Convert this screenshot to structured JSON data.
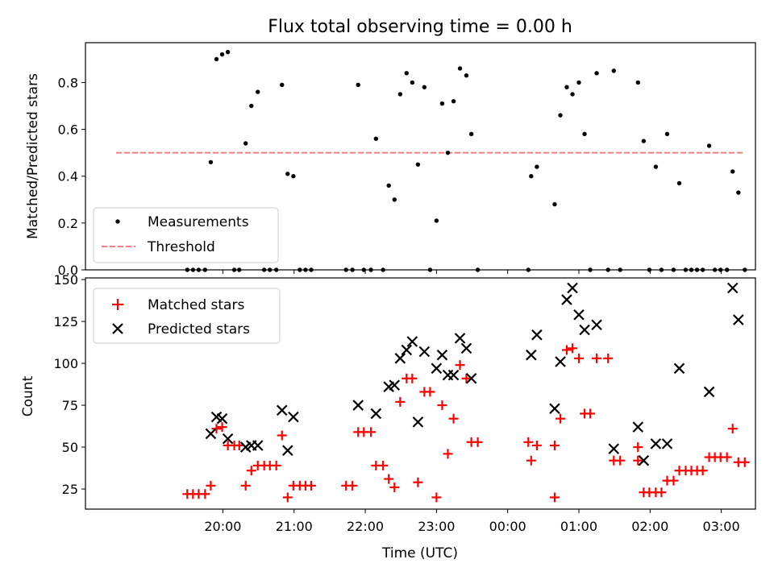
{
  "figure": {
    "title": "Flux total observing time = 0.00 h"
  },
  "chart_data": [
    {
      "type": "scatter",
      "title": "Flux total observing time = 0.00 h",
      "xlabel": "",
      "ylabel": "Matched/Predicted stars",
      "ylim": [
        0,
        0.97
      ],
      "yticks": [
        0.0,
        0.2,
        0.4,
        0.6,
        0.8
      ],
      "ytick_labels": [
        "0.0",
        "0.2",
        "0.4",
        "0.6",
        "0.8"
      ],
      "x_unit": "hours after 19:00 UTC",
      "xlim": [
        -0.93,
        8.48
      ],
      "xticks": [
        1,
        2,
        3,
        4,
        5,
        6,
        7,
        8
      ],
      "grid": false,
      "legend": {
        "placement": "lower-left",
        "entries": [
          "Measurements",
          "Threshold"
        ]
      },
      "colors": {
        "measurements": "#000000",
        "threshold": "#f08080"
      },
      "series": [
        {
          "name": "Measurements",
          "marker": "dot",
          "points": [
            [
              0.5,
              0
            ],
            [
              0.58,
              0
            ],
            [
              0.66,
              0
            ],
            [
              0.75,
              0
            ],
            [
              0.83,
              0.46
            ],
            [
              0.91,
              0.9
            ],
            [
              0.99,
              0.92
            ],
            [
              1.07,
              0.93
            ],
            [
              1.16,
              0
            ],
            [
              1.23,
              0
            ],
            [
              1.32,
              0.54
            ],
            [
              1.4,
              0.7
            ],
            [
              1.49,
              0.76
            ],
            [
              1.58,
              0
            ],
            [
              1.66,
              0
            ],
            [
              1.75,
              0
            ],
            [
              1.83,
              0.79
            ],
            [
              1.91,
              0.41
            ],
            [
              1.99,
              0.4
            ],
            [
              2.08,
              0
            ],
            [
              2.16,
              0
            ],
            [
              2.24,
              0
            ],
            [
              2.73,
              0
            ],
            [
              2.82,
              0
            ],
            [
              2.9,
              0.79
            ],
            [
              2.98,
              0
            ],
            [
              3.08,
              0
            ],
            [
              3.15,
              0.56
            ],
            [
              3.25,
              0
            ],
            [
              3.33,
              0.36
            ],
            [
              3.41,
              0.3
            ],
            [
              3.49,
              0.75
            ],
            [
              3.58,
              0.84
            ],
            [
              3.66,
              0.8
            ],
            [
              3.74,
              0.45
            ],
            [
              3.83,
              0.78
            ],
            [
              3.91,
              0
            ],
            [
              4.0,
              0.21
            ],
            [
              4.08,
              0.71
            ],
            [
              4.16,
              0.5
            ],
            [
              4.24,
              0.72
            ],
            [
              4.33,
              0.86
            ],
            [
              4.42,
              0.83
            ],
            [
              4.49,
              0.58
            ],
            [
              4.58,
              0
            ],
            [
              5.29,
              0
            ],
            [
              5.33,
              0.4
            ],
            [
              5.41,
              0.44
            ],
            [
              5.66,
              0.28
            ],
            [
              5.74,
              0.66
            ],
            [
              5.83,
              0.78
            ],
            [
              5.91,
              0.75
            ],
            [
              6.0,
              0.8
            ],
            [
              6.08,
              0.58
            ],
            [
              6.16,
              0
            ],
            [
              6.25,
              0.84
            ],
            [
              6.41,
              0
            ],
            [
              6.49,
              0.85
            ],
            [
              6.58,
              0
            ],
            [
              6.83,
              0.8
            ],
            [
              6.91,
              0.55
            ],
            [
              6.99,
              0
            ],
            [
              7.08,
              0.44
            ],
            [
              7.16,
              0
            ],
            [
              7.24,
              0.58
            ],
            [
              7.33,
              0
            ],
            [
              7.41,
              0.37
            ],
            [
              7.5,
              0
            ],
            [
              7.58,
              0
            ],
            [
              7.66,
              0
            ],
            [
              7.74,
              0
            ],
            [
              7.83,
              0.53
            ],
            [
              7.91,
              0
            ],
            [
              7.99,
              0
            ],
            [
              8.08,
              0
            ],
            [
              8.16,
              0.42
            ],
            [
              8.24,
              0.33
            ],
            [
              8.33,
              0
            ]
          ]
        },
        {
          "name": "Threshold",
          "marker": "dashed-line",
          "points": [
            [
              -0.5,
              0.5
            ],
            [
              8.33,
              0.5
            ]
          ]
        }
      ]
    },
    {
      "type": "scatter",
      "title": "",
      "xlabel": "Time (UTC)",
      "ylabel": "Count",
      "ylim": [
        13,
        151
      ],
      "yticks": [
        25,
        50,
        75,
        100,
        125,
        150
      ],
      "ytick_labels": [
        "25",
        "50",
        "75",
        "100",
        "125",
        "150"
      ],
      "x_unit": "hours after 19:00 UTC",
      "xlim": [
        -0.93,
        8.48
      ],
      "xticks": [
        1,
        2,
        3,
        4,
        5,
        6,
        7,
        8
      ],
      "xtick_labels": [
        "20:00",
        "21:00",
        "22:00",
        "23:00",
        "00:00",
        "01:00",
        "02:00",
        "03:00"
      ],
      "grid": false,
      "legend": {
        "placement": "upper-left",
        "entries": [
          "Matched stars",
          "Predicted stars"
        ]
      },
      "colors": {
        "matched": "#ff0000",
        "predicted": "#000000"
      },
      "series": [
        {
          "name": "Matched stars",
          "marker": "plus",
          "points": [
            [
              0.5,
              22
            ],
            [
              0.58,
              22
            ],
            [
              0.66,
              22
            ],
            [
              0.75,
              22
            ],
            [
              0.83,
              27
            ],
            [
              0.91,
              61
            ],
            [
              0.99,
              62
            ],
            [
              1.07,
              51
            ],
            [
              1.16,
              51
            ],
            [
              1.23,
              51
            ],
            [
              1.32,
              27
            ],
            [
              1.4,
              36
            ],
            [
              1.49,
              39
            ],
            [
              1.58,
              39
            ],
            [
              1.66,
              39
            ],
            [
              1.75,
              39
            ],
            [
              1.83,
              57
            ],
            [
              1.91,
              20
            ],
            [
              1.99,
              27
            ],
            [
              2.08,
              27
            ],
            [
              2.16,
              27
            ],
            [
              2.24,
              27
            ],
            [
              2.73,
              27
            ],
            [
              2.82,
              27
            ],
            [
              2.9,
              59
            ],
            [
              2.98,
              59
            ],
            [
              3.08,
              59
            ],
            [
              3.15,
              39
            ],
            [
              3.25,
              39
            ],
            [
              3.33,
              31
            ],
            [
              3.41,
              26
            ],
            [
              3.49,
              77
            ],
            [
              3.58,
              91
            ],
            [
              3.66,
              91
            ],
            [
              3.74,
              29
            ],
            [
              3.83,
              83
            ],
            [
              3.91,
              83
            ],
            [
              4.0,
              20
            ],
            [
              4.08,
              75
            ],
            [
              4.16,
              46
            ],
            [
              4.24,
              67
            ],
            [
              4.33,
              99
            ],
            [
              4.42,
              91
            ],
            [
              4.49,
              53
            ],
            [
              4.58,
              53
            ],
            [
              5.29,
              53
            ],
            [
              5.33,
              42
            ],
            [
              5.41,
              51
            ],
            [
              5.66,
              20
            ],
            [
              5.66,
              51
            ],
            [
              5.74,
              67
            ],
            [
              5.83,
              108
            ],
            [
              5.91,
              109
            ],
            [
              6.0,
              103
            ],
            [
              6.08,
              70
            ],
            [
              6.16,
              70
            ],
            [
              6.25,
              103
            ],
            [
              6.41,
              103
            ],
            [
              6.49,
              42
            ],
            [
              6.58,
              42
            ],
            [
              6.83,
              42
            ],
            [
              6.83,
              50
            ],
            [
              6.91,
              23
            ],
            [
              6.99,
              23
            ],
            [
              7.08,
              23
            ],
            [
              7.16,
              23
            ],
            [
              7.24,
              30
            ],
            [
              7.33,
              30
            ],
            [
              7.41,
              36
            ],
            [
              7.5,
              36
            ],
            [
              7.58,
              36
            ],
            [
              7.66,
              36
            ],
            [
              7.74,
              36
            ],
            [
              7.83,
              44
            ],
            [
              7.91,
              44
            ],
            [
              7.99,
              44
            ],
            [
              8.08,
              44
            ],
            [
              8.16,
              61
            ],
            [
              8.24,
              41
            ],
            [
              8.33,
              41
            ]
          ]
        },
        {
          "name": "Predicted stars",
          "marker": "cross",
          "points": [
            [
              0.83,
              58
            ],
            [
              0.91,
              68
            ],
            [
              0.99,
              67
            ],
            [
              1.07,
              55
            ],
            [
              1.32,
              50
            ],
            [
              1.4,
              51
            ],
            [
              1.49,
              51
            ],
            [
              1.83,
              72
            ],
            [
              1.91,
              48
            ],
            [
              1.99,
              68
            ],
            [
              2.9,
              75
            ],
            [
              3.15,
              70
            ],
            [
              3.33,
              86
            ],
            [
              3.41,
              87
            ],
            [
              3.49,
              103
            ],
            [
              3.58,
              108
            ],
            [
              3.66,
              113
            ],
            [
              3.74,
              65
            ],
            [
              3.83,
              107
            ],
            [
              4.0,
              97
            ],
            [
              4.08,
              105
            ],
            [
              4.16,
              93
            ],
            [
              4.24,
              93
            ],
            [
              4.33,
              115
            ],
            [
              4.42,
              109
            ],
            [
              4.49,
              91
            ],
            [
              5.33,
              105
            ],
            [
              5.41,
              117
            ],
            [
              5.66,
              73
            ],
            [
              5.74,
              101
            ],
            [
              5.83,
              138
            ],
            [
              5.91,
              145
            ],
            [
              6.0,
              129
            ],
            [
              6.08,
              120
            ],
            [
              6.25,
              123
            ],
            [
              6.49,
              49
            ],
            [
              6.83,
              62
            ],
            [
              6.91,
              42
            ],
            [
              7.08,
              52
            ],
            [
              7.24,
              52
            ],
            [
              7.41,
              97
            ],
            [
              7.83,
              83
            ],
            [
              8.16,
              145
            ],
            [
              8.24,
              126
            ]
          ]
        }
      ]
    }
  ]
}
